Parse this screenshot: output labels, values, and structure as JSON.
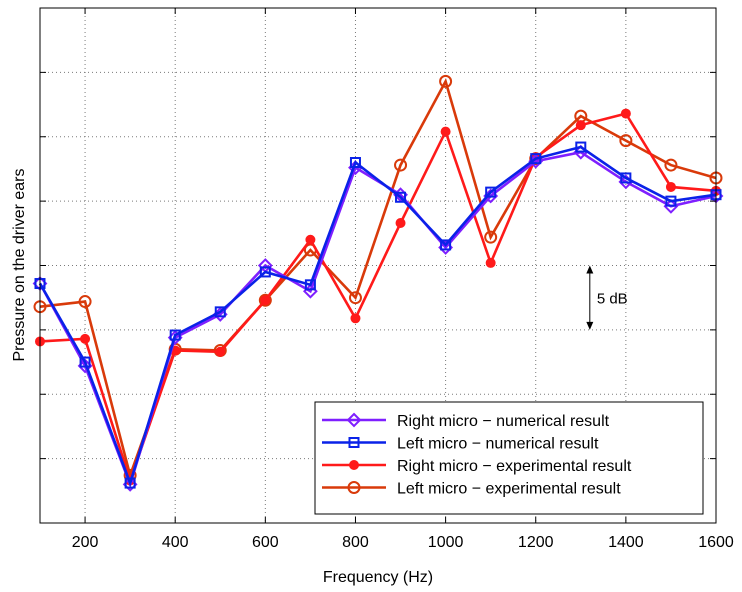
{
  "chart_data": {
    "type": "line",
    "title": "",
    "xlabel": "Frequency (Hz)",
    "ylabel": "Pressure on the driver ears",
    "xlim": [
      100,
      1600
    ],
    "ylim": [
      -15,
      25
    ],
    "x_ticks": [
      200,
      400,
      600,
      800,
      1000,
      1200,
      1400,
      1600
    ],
    "x_tick_labels": [
      "200",
      "400",
      "600",
      "800",
      "1000",
      "1200",
      "1400",
      "1600"
    ],
    "y_ticks": [
      -10,
      -5,
      0,
      5,
      10,
      15,
      20
    ],
    "grid": true,
    "legend_position": "bottom-right",
    "scale_annotation": {
      "label": "5 dB",
      "x": 1320,
      "y_from": 0,
      "y_to": 5
    },
    "x": [
      100,
      200,
      300,
      400,
      500,
      600,
      700,
      800,
      900,
      1000,
      1100,
      1200,
      1300,
      1400,
      1500,
      1600
    ],
    "series": [
      {
        "name": "Right micro − numerical result",
        "color": "#7f1fff",
        "marker": "diamond",
        "values": [
          3.6,
          -2.8,
          -12.0,
          -0.6,
          1.2,
          5.0,
          3.0,
          12.6,
          10.5,
          6.4,
          10.4,
          13.1,
          13.8,
          11.5,
          9.6,
          10.4
        ]
      },
      {
        "name": "Left micro − numerical result",
        "color": "#0a22e8",
        "marker": "square",
        "values": [
          3.6,
          -2.5,
          -11.9,
          -0.4,
          1.4,
          4.5,
          3.5,
          13.0,
          10.3,
          6.6,
          10.7,
          13.3,
          14.2,
          11.8,
          10.0,
          10.5
        ]
      },
      {
        "name": "Right micro − experimental result",
        "color": "#ff1a1a",
        "marker": "dot",
        "values": [
          -0.9,
          -0.7,
          -11.7,
          -1.6,
          -1.7,
          2.3,
          7.0,
          0.9,
          8.3,
          15.4,
          5.2,
          13.4,
          15.9,
          16.8,
          11.1,
          10.8
        ]
      },
      {
        "name": "Left micro − experimental result",
        "color": "#d93a0a",
        "marker": "circle",
        "values": [
          1.8,
          2.2,
          -11.3,
          -1.5,
          -1.6,
          2.3,
          6.2,
          2.5,
          12.8,
          19.3,
          7.2,
          13.3,
          16.6,
          14.7,
          12.8,
          11.8
        ]
      }
    ]
  }
}
